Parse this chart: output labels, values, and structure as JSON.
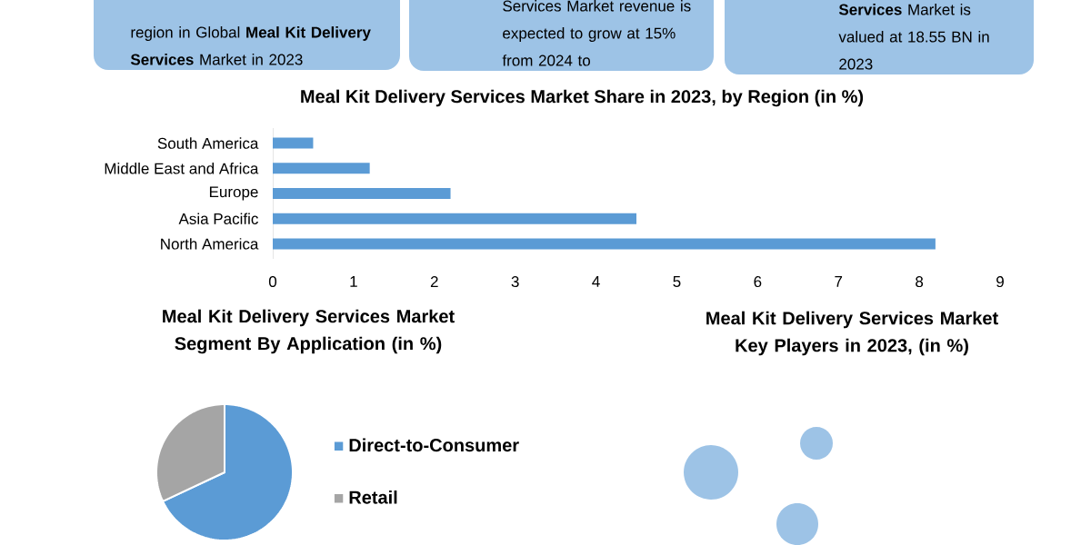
{
  "chart_data": [
    {
      "type": "other",
      "annotations": [
        "region in Global **Meal Kit Delivery Services** Market in 2023",
        "Services Market revenue is expected to grow at 15% from 2024 to",
        "**Services** Market is valued at 18.55 BN in 2023"
      ]
    },
    {
      "type": "bar",
      "orientation": "horizontal",
      "title": "Meal Kit Delivery Services Market Share in 2023, by Region (in %)",
      "categories": [
        "South America",
        "Middle East and Africa",
        "Europe",
        "Asia Pacific",
        "North America"
      ],
      "values": [
        0.5,
        1.2,
        2.2,
        4.5,
        8.2
      ],
      "color": "#5b9bd5",
      "xlim": [
        0,
        9
      ],
      "xticks": [
        0,
        1,
        2,
        3,
        4,
        5,
        6,
        7,
        8,
        9
      ]
    },
    {
      "type": "pie",
      "title": "Meal Kit Delivery Services Market Segment By Application (in %)",
      "categories": [
        "Direct-to-Consumer",
        "Retail"
      ],
      "values": [
        68,
        32
      ],
      "colors": [
        "#5b9bd5",
        "#a5a5a5"
      ],
      "legend": "right"
    },
    {
      "type": "other",
      "title": "Meal Kit Delivery Services Market Key Players in 2023, (in %)"
    }
  ]
}
